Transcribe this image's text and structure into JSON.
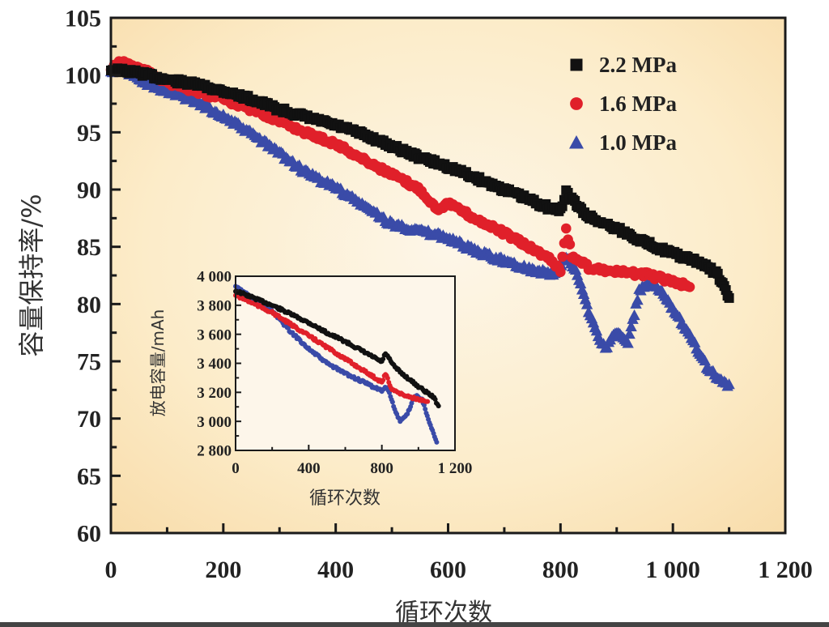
{
  "chart_data": [
    {
      "type": "scatter",
      "title": "",
      "xlabel": "循环次数",
      "ylabel": "容量保持率/%",
      "xlim": [
        0,
        1200
      ],
      "ylim": [
        60,
        105
      ],
      "xticks": [
        0,
        200,
        400,
        600,
        800,
        1000,
        1200
      ],
      "xtick_labels": [
        "0",
        "200",
        "400",
        "600",
        "800",
        "1 000",
        "1 200"
      ],
      "yticks": [
        60,
        65,
        70,
        75,
        80,
        85,
        90,
        95,
        100,
        105
      ],
      "ytick_labels": [
        "60",
        "65",
        "70",
        "75",
        "80",
        "85",
        "90",
        "95",
        "100",
        "105"
      ],
      "grid": false,
      "legend_position": "top-right",
      "background": "#fbe9c6",
      "series": [
        {
          "name": "2.2 MPa",
          "marker": "square",
          "color": "#111111",
          "x": [
            0,
            50,
            100,
            150,
            200,
            250,
            300,
            350,
            400,
            450,
            500,
            550,
            600,
            650,
            700,
            750,
            780,
            800,
            810,
            820,
            840,
            860,
            900,
            950,
            1000,
            1050,
            1080,
            1100
          ],
          "y": [
            100.5,
            100.2,
            99.6,
            99.2,
            98.6,
            97.9,
            97.0,
            96.3,
            95.6,
            94.8,
            93.8,
            92.8,
            92.0,
            91.0,
            90.0,
            89.0,
            88.4,
            88.2,
            89.8,
            89.2,
            88.0,
            87.4,
            86.6,
            85.4,
            84.4,
            83.6,
            82.6,
            80.5
          ]
        },
        {
          "name": "1.6 MPa",
          "marker": "circle",
          "color": "#e0202a",
          "x": [
            0,
            20,
            50,
            100,
            150,
            200,
            250,
            300,
            350,
            400,
            450,
            500,
            550,
            580,
            600,
            650,
            700,
            750,
            780,
            800,
            810,
            820,
            850,
            900,
            950,
            1000,
            1030
          ],
          "y": [
            100.5,
            101.2,
            100.6,
            99.4,
            98.6,
            97.9,
            97.0,
            96.0,
            94.9,
            94.0,
            92.6,
            91.3,
            90.0,
            88.3,
            88.8,
            87.4,
            86.2,
            84.8,
            84.0,
            83.0,
            86.6,
            84.2,
            83.2,
            82.8,
            82.6,
            82.0,
            81.5
          ]
        },
        {
          "name": "1.0 MPa",
          "marker": "triangle",
          "color": "#3a4ba8",
          "x": [
            0,
            20,
            50,
            100,
            150,
            200,
            250,
            300,
            350,
            400,
            450,
            500,
            550,
            600,
            650,
            700,
            750,
            790,
            810,
            830,
            850,
            870,
            880,
            900,
            920,
            940,
            960,
            980,
            1000,
            1030,
            1060,
            1080,
            1100
          ],
          "y": [
            100.3,
            100.6,
            99.6,
            98.6,
            97.8,
            96.4,
            94.9,
            93.2,
            91.4,
            90.2,
            88.6,
            87.0,
            86.4,
            85.8,
            84.6,
            83.8,
            83.0,
            82.6,
            84.2,
            82.6,
            79.4,
            77.0,
            76.2,
            77.6,
            76.6,
            81.2,
            81.8,
            81.0,
            79.6,
            77.4,
            74.6,
            73.6,
            72.8
          ]
        }
      ]
    },
    {
      "type": "scatter",
      "title": "",
      "xlabel": "循环次数",
      "ylabel": "放电容量/mAh",
      "xlim": [
        0,
        1200
      ],
      "ylim": [
        2800,
        4000
      ],
      "xticks": [
        0,
        400,
        800,
        1200
      ],
      "xtick_labels": [
        "0",
        "400",
        "800",
        "1 200"
      ],
      "yticks": [
        2800,
        3000,
        3200,
        3400,
        3600,
        3800,
        4000
      ],
      "ytick_labels": [
        "2 800",
        "3 000",
        "3 200",
        "3 400",
        "3 600",
        "3 800",
        "4 000"
      ],
      "grid": false,
      "legend_position": "none",
      "background": "#fdf5e6",
      "series": [
        {
          "name": "2.2 MPa",
          "color": "#111111",
          "x": [
            0,
            100,
            200,
            300,
            400,
            500,
            600,
            700,
            800,
            820,
            860,
            900,
            1000,
            1080,
            1110
          ],
          "y": [
            3900,
            3850,
            3800,
            3740,
            3680,
            3610,
            3550,
            3480,
            3410,
            3470,
            3390,
            3340,
            3240,
            3170,
            3110
          ]
        },
        {
          "name": "1.6 MPa",
          "color": "#e0202a",
          "x": [
            0,
            100,
            200,
            300,
            400,
            500,
            600,
            700,
            800,
            820,
            850,
            900,
            950,
            1000,
            1050
          ],
          "y": [
            3870,
            3810,
            3750,
            3670,
            3590,
            3510,
            3430,
            3350,
            3270,
            3330,
            3230,
            3190,
            3170,
            3150,
            3130
          ]
        },
        {
          "name": "1.0 MPa",
          "color": "#3a4ba8",
          "x": [
            0,
            100,
            200,
            300,
            400,
            500,
            600,
            700,
            800,
            830,
            870,
            900,
            940,
            980,
            1020,
            1060,
            1100
          ],
          "y": [
            3930,
            3840,
            3760,
            3620,
            3500,
            3400,
            3330,
            3270,
            3210,
            3240,
            3080,
            3000,
            3050,
            3180,
            3150,
            3000,
            2850
          ]
        }
      ]
    }
  ]
}
